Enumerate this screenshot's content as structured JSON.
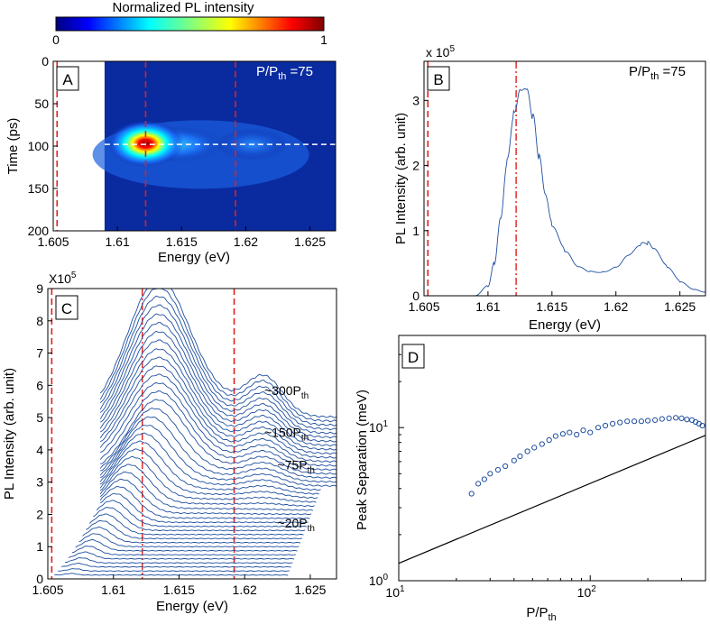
{
  "colorbar": {
    "title": "Normalized PL intensity",
    "min_label": "0",
    "max_label": "1"
  },
  "chart_data": [
    {
      "panel": "A",
      "type": "heatmap",
      "annotation": {
        "prefix": "P/P",
        "sub": "th",
        "suffix": " =75"
      },
      "xlabel": "Energy (eV)",
      "ylabel": "Time (ps)",
      "xlim": [
        1.605,
        1.627
      ],
      "ylim": [
        0,
        200
      ],
      "xticks": [
        "1.605",
        "1.61",
        "1.615",
        "1.62",
        "1.625"
      ],
      "yticks": [
        "0",
        "50",
        "100",
        "150",
        "200"
      ],
      "data_start_energy": 1.609,
      "hotspots": [
        {
          "energy": 1.6122,
          "time": 97,
          "value": 1.0
        },
        {
          "energy": 1.6145,
          "time": 98,
          "value": 0.45
        },
        {
          "energy": 1.6205,
          "time": 98,
          "value": 0.25
        }
      ],
      "vlines_energy": [
        1.6053,
        1.6122,
        1.6192
      ],
      "hline_time": 98
    },
    {
      "panel": "B",
      "type": "line",
      "annotation": {
        "prefix": "P/P",
        "sub": "th",
        "suffix": " =75"
      },
      "xlabel": "Energy (eV)",
      "ylabel": "PL Intensity (arb. unit)",
      "scale_label": "x 10",
      "scale_exp": "5",
      "xlim": [
        1.605,
        1.627
      ],
      "ylim": [
        0,
        3.6
      ],
      "xticks": [
        "1.605",
        "1.61",
        "1.615",
        "1.62",
        "1.625"
      ],
      "yticks": [
        "0",
        "1",
        "2",
        "3"
      ],
      "x": [
        1.609,
        1.61,
        1.6105,
        1.611,
        1.6115,
        1.612,
        1.6125,
        1.613,
        1.6135,
        1.614,
        1.6145,
        1.615,
        1.616,
        1.617,
        1.618,
        1.619,
        1.62,
        1.621,
        1.622,
        1.6225,
        1.623,
        1.624,
        1.625,
        1.626,
        1.627
      ],
      "y": [
        0.0,
        0.15,
        0.5,
        1.2,
        2.1,
        2.85,
        3.2,
        3.15,
        2.7,
        2.1,
        1.55,
        1.1,
        0.7,
        0.45,
        0.38,
        0.38,
        0.45,
        0.62,
        0.78,
        0.8,
        0.72,
        0.45,
        0.22,
        0.1,
        0.06
      ],
      "vlines_energy": [
        1.6053,
        1.6122
      ]
    },
    {
      "panel": "C",
      "type": "line",
      "xlabel": "Energy (eV)",
      "ylabel": "PL Intensity (arb. unit)",
      "scale_label": "X10",
      "scale_exp": "5",
      "xlim": [
        1.605,
        1.627
      ],
      "ylim": [
        0,
        9
      ],
      "xticks": [
        "1.605",
        "1.61",
        "1.615",
        "1.62",
        "1.625"
      ],
      "yticks": [
        "0",
        "1",
        "2",
        "3",
        "4",
        "5",
        "6",
        "7",
        "8",
        "9"
      ],
      "series_count": 40,
      "labels": [
        {
          "prefix": "~300P",
          "sub": "th",
          "energy": 1.6215,
          "intensity": 5.7
        },
        {
          "prefix": "~150P",
          "sub": "th",
          "energy": 1.6215,
          "intensity": 4.4
        },
        {
          "prefix": "~75P",
          "sub": "th",
          "energy": 1.6225,
          "intensity": 3.4
        },
        {
          "prefix": "~20P",
          "sub": "th",
          "energy": 1.6225,
          "intensity": 1.6
        }
      ],
      "vlines_energy": [
        1.6053,
        1.6122,
        1.6192
      ]
    },
    {
      "panel": "D",
      "type": "scatter",
      "xlabel_prefix": "P/P",
      "xlabel_sub": "th",
      "ylabel": "Peak Separation (meV)",
      "xscale": "log",
      "yscale": "log",
      "xlim": [
        10,
        400
      ],
      "ylim": [
        1,
        40
      ],
      "xticks": [
        {
          "base": "10",
          "exp": "1"
        },
        {
          "base": "10",
          "exp": "2"
        }
      ],
      "yticks": [
        {
          "base": "10",
          "exp": "0"
        },
        {
          "base": "10",
          "exp": "1"
        }
      ],
      "x": [
        24,
        26,
        28,
        30,
        33,
        36,
        40,
        43,
        47,
        51,
        56,
        61,
        66,
        72,
        78,
        85,
        92,
        100,
        110,
        120,
        131,
        143,
        156,
        170,
        185,
        200,
        218,
        237,
        258,
        280,
        300,
        320,
        340,
        355,
        370,
        385
      ],
      "y": [
        3.7,
        4.3,
        4.6,
        5.0,
        5.3,
        5.6,
        6.1,
        6.5,
        7.0,
        7.4,
        7.8,
        8.3,
        8.8,
        9.1,
        9.3,
        9.0,
        9.6,
        9.3,
        10.0,
        10.3,
        10.6,
        10.8,
        11.0,
        11.0,
        11.0,
        11.1,
        11.2,
        11.4,
        11.5,
        11.6,
        11.5,
        11.3,
        11.2,
        10.9,
        10.6,
        10.3
      ],
      "fit_line": {
        "x": [
          10,
          400
        ],
        "y": [
          1.3,
          8.9
        ]
      }
    }
  ]
}
